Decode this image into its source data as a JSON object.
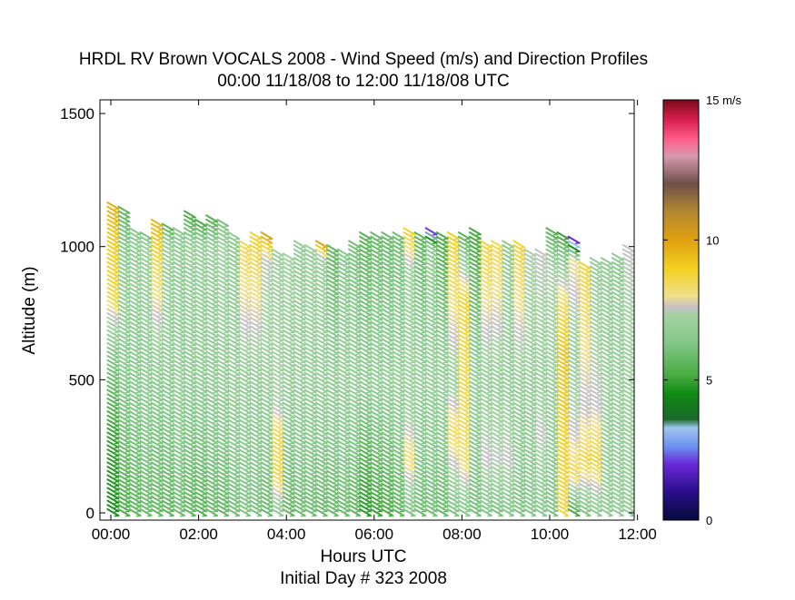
{
  "chart_data": {
    "type": "scatter",
    "title": "HRDL RV Brown VOCALS 2008 - Wind Speed (m/s) and Direction Profiles",
    "subtitle": "00:00 11/18/08 to 12:00 11/18/08  UTC",
    "xlabel": "Hours UTC",
    "xlabel2": "Initial Day # 323  2008",
    "ylabel": "Altitude (m)",
    "xlim": [
      0,
      12
    ],
    "ylim": [
      -20,
      1540
    ],
    "xticks": [
      0,
      2,
      4,
      6,
      8,
      10,
      12
    ],
    "xtick_labels": [
      "00:00",
      "02:00",
      "04:00",
      "06:00",
      "08:00",
      "10:00",
      "12:00"
    ],
    "yticks": [
      0,
      500,
      1000,
      1500
    ],
    "ytick_labels": [
      "0",
      "500",
      "1000",
      "1500"
    ],
    "grid": false,
    "marker": "wind-barb-arrow",
    "colorbar": {
      "label": "m/s",
      "min": 0,
      "max": 15,
      "ticks": [
        0,
        5,
        10,
        15
      ],
      "tick_labels": [
        "0",
        "5",
        "10",
        "15 m/s"
      ],
      "stops": [
        {
          "v": 0,
          "color": "#050a3a"
        },
        {
          "v": 1,
          "color": "#2a0e8c"
        },
        {
          "v": 2,
          "color": "#6a28d8"
        },
        {
          "v": 2.6,
          "color": "#6c8ef0"
        },
        {
          "v": 3.3,
          "color": "#9ec6ee"
        },
        {
          "v": 3.6,
          "color": "#1a6a2a"
        },
        {
          "v": 4.5,
          "color": "#0f8a12"
        },
        {
          "v": 5.2,
          "color": "#4aac44"
        },
        {
          "v": 6.4,
          "color": "#86c98c"
        },
        {
          "v": 7.3,
          "color": "#a2d2a0"
        },
        {
          "v": 7.6,
          "color": "#c8c0c8"
        },
        {
          "v": 8.0,
          "color": "#f0e08a"
        },
        {
          "v": 9.0,
          "color": "#f2d020"
        },
        {
          "v": 10.0,
          "color": "#e0a010"
        },
        {
          "v": 11.0,
          "color": "#b48830"
        },
        {
          "v": 12.0,
          "color": "#6e5048"
        },
        {
          "v": 13.0,
          "color": "#d898b0"
        },
        {
          "v": 13.6,
          "color": "#ff5c8a"
        },
        {
          "v": 14.3,
          "color": "#d81e4e"
        },
        {
          "v": 15,
          "color": "#7a0a18"
        }
      ]
    },
    "profiles": [
      {
        "t": 0.05,
        "top": 1160,
        "profile": [
          [
            0,
            4.6
          ],
          [
            300,
            5.0
          ],
          [
            600,
            6.3
          ],
          [
            750,
            7.7
          ],
          [
            800,
            8.6
          ],
          [
            1050,
            9.2
          ],
          [
            1150,
            9.7
          ]
        ]
      },
      {
        "t": 0.3,
        "top": 1140,
        "profile": [
          [
            0,
            5.3
          ],
          [
            400,
            6.2
          ],
          [
            800,
            6.8
          ],
          [
            1000,
            6.4
          ],
          [
            1140,
            5.6
          ]
        ]
      },
      {
        "t": 0.55,
        "top": 1060,
        "profile": [
          [
            0,
            5.6
          ],
          [
            400,
            6.3
          ],
          [
            900,
            6.9
          ],
          [
            1060,
            6.5
          ]
        ]
      },
      {
        "t": 0.8,
        "top": 1050,
        "profile": [
          [
            0,
            5.8
          ],
          [
            500,
            6.6
          ],
          [
            1000,
            7.0
          ],
          [
            1050,
            6.0
          ]
        ]
      },
      {
        "t": 1.05,
        "top": 1090,
        "profile": [
          [
            0,
            5.7
          ],
          [
            500,
            6.5
          ],
          [
            950,
            8.6
          ],
          [
            1090,
            9.6
          ]
        ]
      },
      {
        "t": 1.3,
        "top": 1080,
        "profile": [
          [
            0,
            5.6
          ],
          [
            500,
            6.6
          ],
          [
            1000,
            6.9
          ],
          [
            1080,
            5.4
          ]
        ]
      },
      {
        "t": 1.55,
        "top": 1060,
        "profile": [
          [
            0,
            5.9
          ],
          [
            500,
            6.8
          ],
          [
            1060,
            6.6
          ]
        ]
      },
      {
        "t": 1.8,
        "top": 1120,
        "profile": [
          [
            0,
            5.6
          ],
          [
            500,
            6.6
          ],
          [
            1000,
            6.9
          ],
          [
            1120,
            5.2
          ]
        ]
      },
      {
        "t": 2.05,
        "top": 1100,
        "profile": [
          [
            0,
            5.5
          ],
          [
            500,
            6.7
          ],
          [
            1000,
            6.9
          ],
          [
            1100,
            5.0
          ]
        ]
      },
      {
        "t": 2.3,
        "top": 1110,
        "profile": [
          [
            0,
            5.8
          ],
          [
            500,
            6.7
          ],
          [
            1000,
            6.9
          ],
          [
            1110,
            5.3
          ]
        ]
      },
      {
        "t": 2.55,
        "top": 1090,
        "profile": [
          [
            0,
            5.7
          ],
          [
            500,
            6.8
          ],
          [
            1000,
            7.2
          ],
          [
            1090,
            6.1
          ]
        ]
      },
      {
        "t": 2.8,
        "top": 1050,
        "profile": [
          [
            0,
            6.0
          ],
          [
            500,
            6.9
          ],
          [
            1050,
            6.6
          ]
        ]
      },
      {
        "t": 3.05,
        "top": 1020,
        "profile": [
          [
            0,
            6.2
          ],
          [
            500,
            6.9
          ],
          [
            1020,
            8.6
          ]
        ]
      },
      {
        "t": 3.3,
        "top": 1040,
        "profile": [
          [
            0,
            6.1
          ],
          [
            500,
            6.8
          ],
          [
            1040,
            8.9
          ]
        ]
      },
      {
        "t": 3.55,
        "top": 1050,
        "profile": [
          [
            0,
            5.8
          ],
          [
            500,
            6.9
          ],
          [
            950,
            7.5
          ],
          [
            1050,
            10.2
          ],
          [
            1060,
            14.8
          ]
        ]
      },
      {
        "t": 3.8,
        "top": 990,
        "profile": [
          [
            0,
            6.7
          ],
          [
            150,
            8.7
          ],
          [
            300,
            8.5
          ],
          [
            400,
            7.4
          ],
          [
            990,
            7.0
          ]
        ]
      },
      {
        "t": 4.05,
        "top": 960,
        "profile": [
          [
            0,
            5.7
          ],
          [
            500,
            6.8
          ],
          [
            960,
            7.3
          ]
        ]
      },
      {
        "t": 4.3,
        "top": 1010,
        "profile": [
          [
            0,
            5.9
          ],
          [
            500,
            6.9
          ],
          [
            1010,
            6.8
          ]
        ]
      },
      {
        "t": 4.55,
        "top": 1000,
        "profile": [
          [
            0,
            5.9
          ],
          [
            500,
            6.9
          ],
          [
            1000,
            7.0
          ]
        ]
      },
      {
        "t": 4.8,
        "top": 1010,
        "profile": [
          [
            0,
            5.8
          ],
          [
            500,
            6.9
          ],
          [
            950,
            7.0
          ],
          [
            1010,
            10.0
          ]
        ]
      },
      {
        "t": 5.05,
        "top": 1000,
        "profile": [
          [
            0,
            5.8
          ],
          [
            500,
            6.8
          ],
          [
            1000,
            5.6
          ]
        ]
      },
      {
        "t": 5.3,
        "top": 990,
        "profile": [
          [
            0,
            5.9
          ],
          [
            500,
            6.9
          ],
          [
            990,
            6.4
          ]
        ]
      },
      {
        "t": 5.55,
        "top": 1020,
        "profile": [
          [
            0,
            5.6
          ],
          [
            500,
            6.9
          ],
          [
            1020,
            6.0
          ]
        ]
      },
      {
        "t": 5.8,
        "top": 1050,
        "profile": [
          [
            0,
            4.8
          ],
          [
            150,
            5.2
          ],
          [
            500,
            6.7
          ],
          [
            1050,
            5.5
          ]
        ]
      },
      {
        "t": 6.05,
        "top": 1040,
        "profile": [
          [
            0,
            5.0
          ],
          [
            150,
            5.6
          ],
          [
            500,
            6.8
          ],
          [
            1040,
            5.8
          ]
        ]
      },
      {
        "t": 6.3,
        "top": 1040,
        "profile": [
          [
            0,
            5.2
          ],
          [
            500,
            6.8
          ],
          [
            1040,
            5.8
          ]
        ]
      },
      {
        "t": 6.55,
        "top": 1050,
        "profile": [
          [
            0,
            5.6
          ],
          [
            500,
            6.9
          ],
          [
            1050,
            5.9
          ]
        ]
      },
      {
        "t": 6.8,
        "top": 1070,
        "profile": [
          [
            0,
            6.2
          ],
          [
            200,
            8.3
          ],
          [
            400,
            7.0
          ],
          [
            900,
            7.0
          ],
          [
            1070,
            9.1
          ]
        ]
      },
      {
        "t": 7.05,
        "top": 1050,
        "profile": [
          [
            0,
            5.9
          ],
          [
            500,
            6.9
          ],
          [
            1050,
            5.6
          ]
        ]
      },
      {
        "t": 7.3,
        "top": 1060,
        "profile": [
          [
            0,
            6.0
          ],
          [
            500,
            6.9
          ],
          [
            1000,
            6.6
          ],
          [
            1060,
            1.8
          ]
        ]
      },
      {
        "t": 7.55,
        "top": 1050,
        "profile": [
          [
            0,
            5.8
          ],
          [
            500,
            6.9
          ],
          [
            1050,
            5.2
          ]
        ]
      },
      {
        "t": 7.8,
        "top": 1040,
        "profile": [
          [
            0,
            6.2
          ],
          [
            300,
            8.4
          ],
          [
            500,
            7.0
          ],
          [
            1040,
            9.0
          ]
        ]
      },
      {
        "t": 8.05,
        "top": 1050,
        "profile": [
          [
            0,
            6.4
          ],
          [
            200,
            8.3
          ],
          [
            500,
            8.6
          ],
          [
            800,
            8.8
          ],
          [
            1050,
            5.4
          ]
        ]
      },
      {
        "t": 8.3,
        "top": 1060,
        "profile": [
          [
            0,
            6.0
          ],
          [
            500,
            6.8
          ],
          [
            1060,
            5.1
          ]
        ]
      },
      {
        "t": 8.55,
        "top": 1020,
        "profile": [
          [
            0,
            6.3
          ],
          [
            200,
            7.6
          ],
          [
            500,
            6.9
          ],
          [
            1020,
            8.8
          ]
        ]
      },
      {
        "t": 8.8,
        "top": 1010,
        "profile": [
          [
            0,
            6.1
          ],
          [
            200,
            7.5
          ],
          [
            500,
            6.9
          ],
          [
            1010,
            8.6
          ]
        ]
      },
      {
        "t": 9.05,
        "top": 1010,
        "profile": [
          [
            0,
            6.3
          ],
          [
            200,
            7.6
          ],
          [
            500,
            6.8
          ],
          [
            1010,
            6.6
          ]
        ]
      },
      {
        "t": 9.3,
        "top": 1020,
        "profile": [
          [
            0,
            6.2
          ],
          [
            500,
            6.9
          ],
          [
            1020,
            8.9
          ]
        ]
      },
      {
        "t": 9.55,
        "top": 990,
        "profile": [
          [
            0,
            6.3
          ],
          [
            500,
            6.9
          ],
          [
            990,
            7.4
          ]
        ]
      },
      {
        "t": 9.8,
        "top": 990,
        "profile": [
          [
            0,
            6.4
          ],
          [
            300,
            7.6
          ],
          [
            500,
            6.9
          ],
          [
            990,
            7.6
          ]
        ]
      },
      {
        "t": 10.05,
        "top": 1060,
        "profile": [
          [
            0,
            6.2
          ],
          [
            500,
            6.9
          ],
          [
            900,
            7.4
          ],
          [
            1060,
            5.4
          ]
        ]
      },
      {
        "t": 10.3,
        "top": 1040,
        "profile": [
          [
            0,
            8.7
          ],
          [
            300,
            9.0
          ],
          [
            600,
            9.3
          ],
          [
            800,
            8.4
          ],
          [
            1000,
            5.8
          ],
          [
            1040,
            5.0
          ]
        ]
      },
      {
        "t": 10.55,
        "top": 1030,
        "profile": [
          [
            0,
            5.2
          ],
          [
            150,
            8.6
          ],
          [
            300,
            7.6
          ],
          [
            600,
            6.9
          ],
          [
            950,
            8.0
          ],
          [
            1030,
            1.5
          ]
        ]
      },
      {
        "t": 10.8,
        "top": 930,
        "profile": [
          [
            0,
            6.2
          ],
          [
            200,
            8.7
          ],
          [
            400,
            7.5
          ],
          [
            930,
            8.8
          ]
        ]
      },
      {
        "t": 11.05,
        "top": 950,
        "profile": [
          [
            0,
            6.5
          ],
          [
            200,
            8.8
          ],
          [
            400,
            7.6
          ],
          [
            950,
            6.9
          ]
        ]
      },
      {
        "t": 11.3,
        "top": 950,
        "profile": [
          [
            0,
            6.6
          ],
          [
            500,
            6.9
          ],
          [
            950,
            6.7
          ]
        ]
      },
      {
        "t": 11.55,
        "top": 970,
        "profile": [
          [
            0,
            6.7
          ],
          [
            500,
            6.9
          ],
          [
            970,
            6.6
          ]
        ]
      },
      {
        "t": 11.8,
        "top": 1000,
        "profile": [
          [
            0,
            6.8
          ],
          [
            500,
            7.0
          ],
          [
            1000,
            7.6
          ]
        ]
      }
    ]
  }
}
